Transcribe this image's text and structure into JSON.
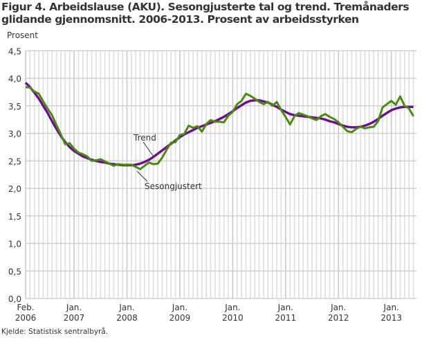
{
  "chart_data": {
    "type": "line",
    "title": "Figur 4. Arbeidslause (AKU). Sesongjusterte tal og trend. Tremånaders glidande gjennomsnitt. 2006-2013. Prosent av arbeidsstyrken",
    "ylabel": "Prosent",
    "xlabel": "",
    "ylim": [
      0,
      4.5
    ],
    "yticks": [
      "0,0",
      "0,5",
      "1,0",
      "1,5",
      "2,0",
      "2,5",
      "3,0",
      "3,5",
      "4,0",
      "4,5"
    ],
    "x_start": "2006-02",
    "x_end": "2013-06",
    "x_frequency": "monthly",
    "xticks": [
      {
        "month": "Feb.",
        "year": "2006"
      },
      {
        "month": "Jan.",
        "year": "2007"
      },
      {
        "month": "Jan.",
        "year": "2008"
      },
      {
        "month": "Jan.",
        "year": "2009"
      },
      {
        "month": "Jan.",
        "year": "2010"
      },
      {
        "month": "Jan.",
        "year": "2011"
      },
      {
        "month": "Jan.",
        "year": "2012"
      },
      {
        "month": "Jan.",
        "year": "2013"
      }
    ],
    "grid": true,
    "legend": "inline labels",
    "series": [
      {
        "name": "Trend",
        "color": "#6b0f8f",
        "values": [
          3.92,
          3.84,
          3.74,
          3.63,
          3.5,
          3.37,
          3.22,
          3.08,
          2.95,
          2.84,
          2.75,
          2.68,
          2.63,
          2.58,
          2.55,
          2.52,
          2.5,
          2.48,
          2.47,
          2.45,
          2.44,
          2.43,
          2.42,
          2.42,
          2.42,
          2.43,
          2.45,
          2.48,
          2.52,
          2.57,
          2.63,
          2.69,
          2.75,
          2.81,
          2.87,
          2.93,
          2.98,
          3.02,
          3.06,
          3.1,
          3.13,
          3.16,
          3.19,
          3.22,
          3.26,
          3.3,
          3.35,
          3.4,
          3.46,
          3.51,
          3.56,
          3.59,
          3.6,
          3.6,
          3.58,
          3.56,
          3.52,
          3.48,
          3.43,
          3.39,
          3.35,
          3.33,
          3.32,
          3.31,
          3.3,
          3.29,
          3.28,
          3.27,
          3.25,
          3.22,
          3.2,
          3.17,
          3.14,
          3.12,
          3.11,
          3.11,
          3.12,
          3.14,
          3.17,
          3.21,
          3.26,
          3.32,
          3.37,
          3.42,
          3.45,
          3.47,
          3.48,
          3.48,
          3.48
        ]
      },
      {
        "name": "Sesongjustert",
        "color": "#4b8a12",
        "values": [
          3.84,
          3.83,
          3.76,
          3.72,
          3.58,
          3.45,
          3.33,
          3.15,
          2.98,
          2.8,
          2.82,
          2.72,
          2.65,
          2.62,
          2.58,
          2.5,
          2.51,
          2.53,
          2.49,
          2.45,
          2.41,
          2.44,
          2.43,
          2.43,
          2.43,
          2.39,
          2.35,
          2.41,
          2.47,
          2.44,
          2.45,
          2.56,
          2.7,
          2.83,
          2.84,
          2.97,
          2.99,
          3.14,
          3.1,
          3.13,
          3.03,
          3.17,
          3.24,
          3.21,
          3.21,
          3.2,
          3.32,
          3.39,
          3.53,
          3.59,
          3.72,
          3.68,
          3.63,
          3.57,
          3.53,
          3.57,
          3.5,
          3.57,
          3.42,
          3.3,
          3.16,
          3.31,
          3.37,
          3.34,
          3.31,
          3.27,
          3.24,
          3.31,
          3.35,
          3.3,
          3.26,
          3.2,
          3.12,
          3.04,
          3.02,
          3.08,
          3.12,
          3.09,
          3.11,
          3.12,
          3.22,
          3.47,
          3.53,
          3.59,
          3.52,
          3.67,
          3.5,
          3.45,
          3.31
        ]
      }
    ]
  },
  "source": "Kjelde: Statistisk sentralbyrå."
}
